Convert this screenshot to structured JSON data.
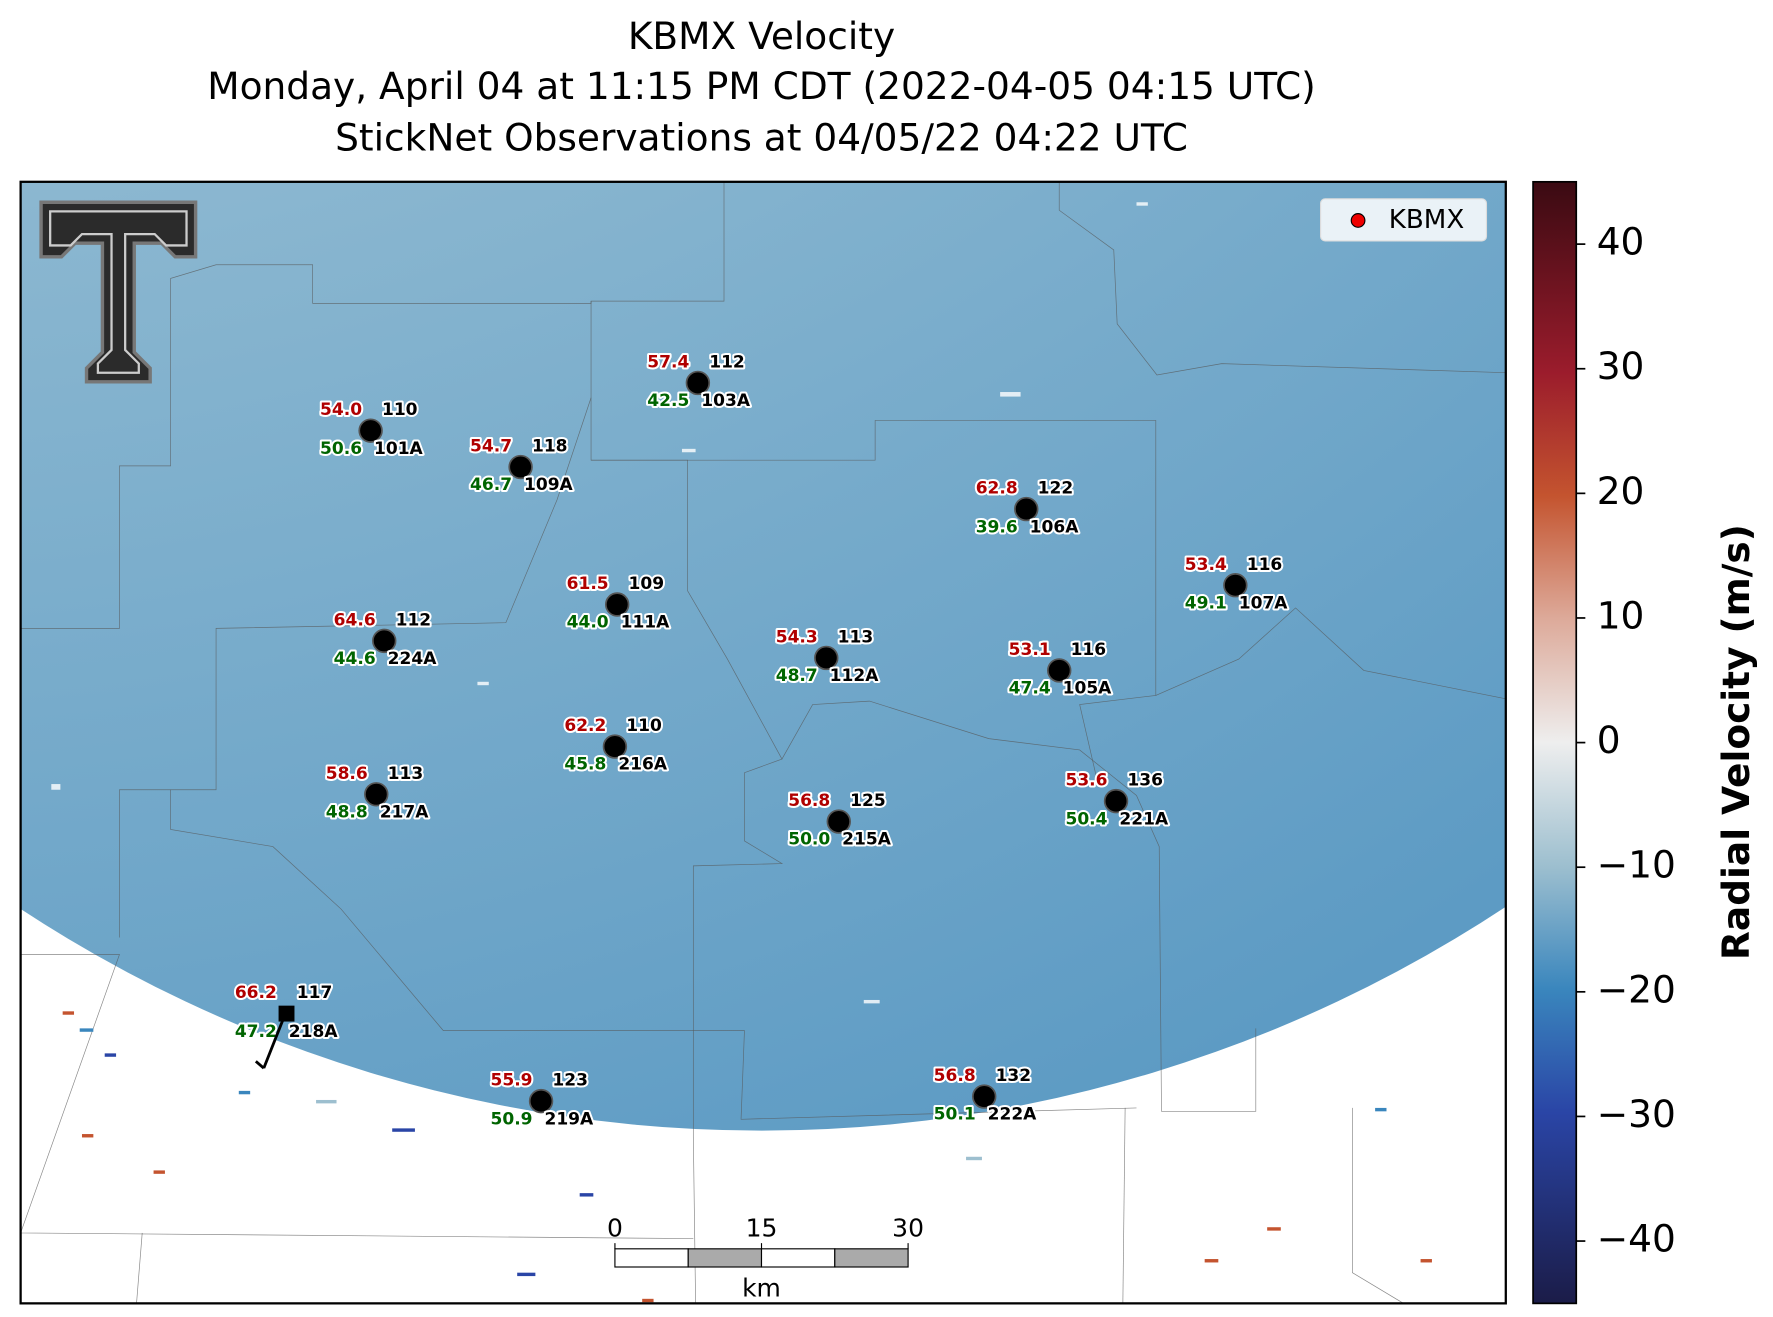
{
  "title": [
    "KBMX Velocity",
    "Monday, April 04 at 11:15 PM CDT (2022-04-05 04:15 UTC)",
    "StickNet Observations at 04/05/22 04:22 UTC"
  ],
  "legend": {
    "label": "KBMX"
  },
  "stations": [
    {
      "id": "101A",
      "red": "54.0",
      "black": "110",
      "green": "50.6"
    },
    {
      "id": "109A",
      "red": "54.7",
      "black": "118",
      "green": "46.7"
    },
    {
      "id": "103A",
      "red": "57.4",
      "black": "112",
      "green": "42.5"
    },
    {
      "id": "106A",
      "red": "62.8",
      "black": "122",
      "green": "39.6"
    },
    {
      "id": "107A",
      "red": "53.4",
      "black": "116",
      "green": "49.1"
    },
    {
      "id": "224A",
      "red": "64.6",
      "black": "112",
      "green": "44.6"
    },
    {
      "id": "111A",
      "red": "61.5",
      "black": "109",
      "green": "44.0"
    },
    {
      "id": "112A",
      "red": "54.3",
      "black": "113",
      "green": "48.7"
    },
    {
      "id": "105A",
      "red": "53.1",
      "black": "116",
      "green": "47.4"
    },
    {
      "id": "216A",
      "red": "62.2",
      "black": "110",
      "green": "45.8"
    },
    {
      "id": "217A",
      "red": "58.6",
      "black": "113",
      "green": "48.8"
    },
    {
      "id": "215A",
      "red": "56.8",
      "black": "125",
      "green": "50.0"
    },
    {
      "id": "221A",
      "red": "53.6",
      "black": "136",
      "green": "50.4"
    },
    {
      "id": "218A",
      "red": "66.2",
      "black": "117",
      "green": "47.2"
    },
    {
      "id": "219A",
      "red": "55.9",
      "black": "123",
      "green": "50.9"
    },
    {
      "id": "222A",
      "red": "56.8",
      "black": "132",
      "green": "50.1"
    }
  ],
  "colorbar": {
    "label": "Radial Velocity (m/s)",
    "lim": [
      -45,
      45
    ],
    "ticks": [
      {
        "value": -40,
        "label": "−40"
      },
      {
        "value": -30,
        "label": "−30"
      },
      {
        "value": -20,
        "label": "−20"
      },
      {
        "value": -10,
        "label": "−10"
      },
      0,
      10,
      20,
      30,
      40
    ]
  },
  "scale_bar": {
    "ticks": [
      0,
      15,
      30
    ],
    "unit": "km"
  }
}
